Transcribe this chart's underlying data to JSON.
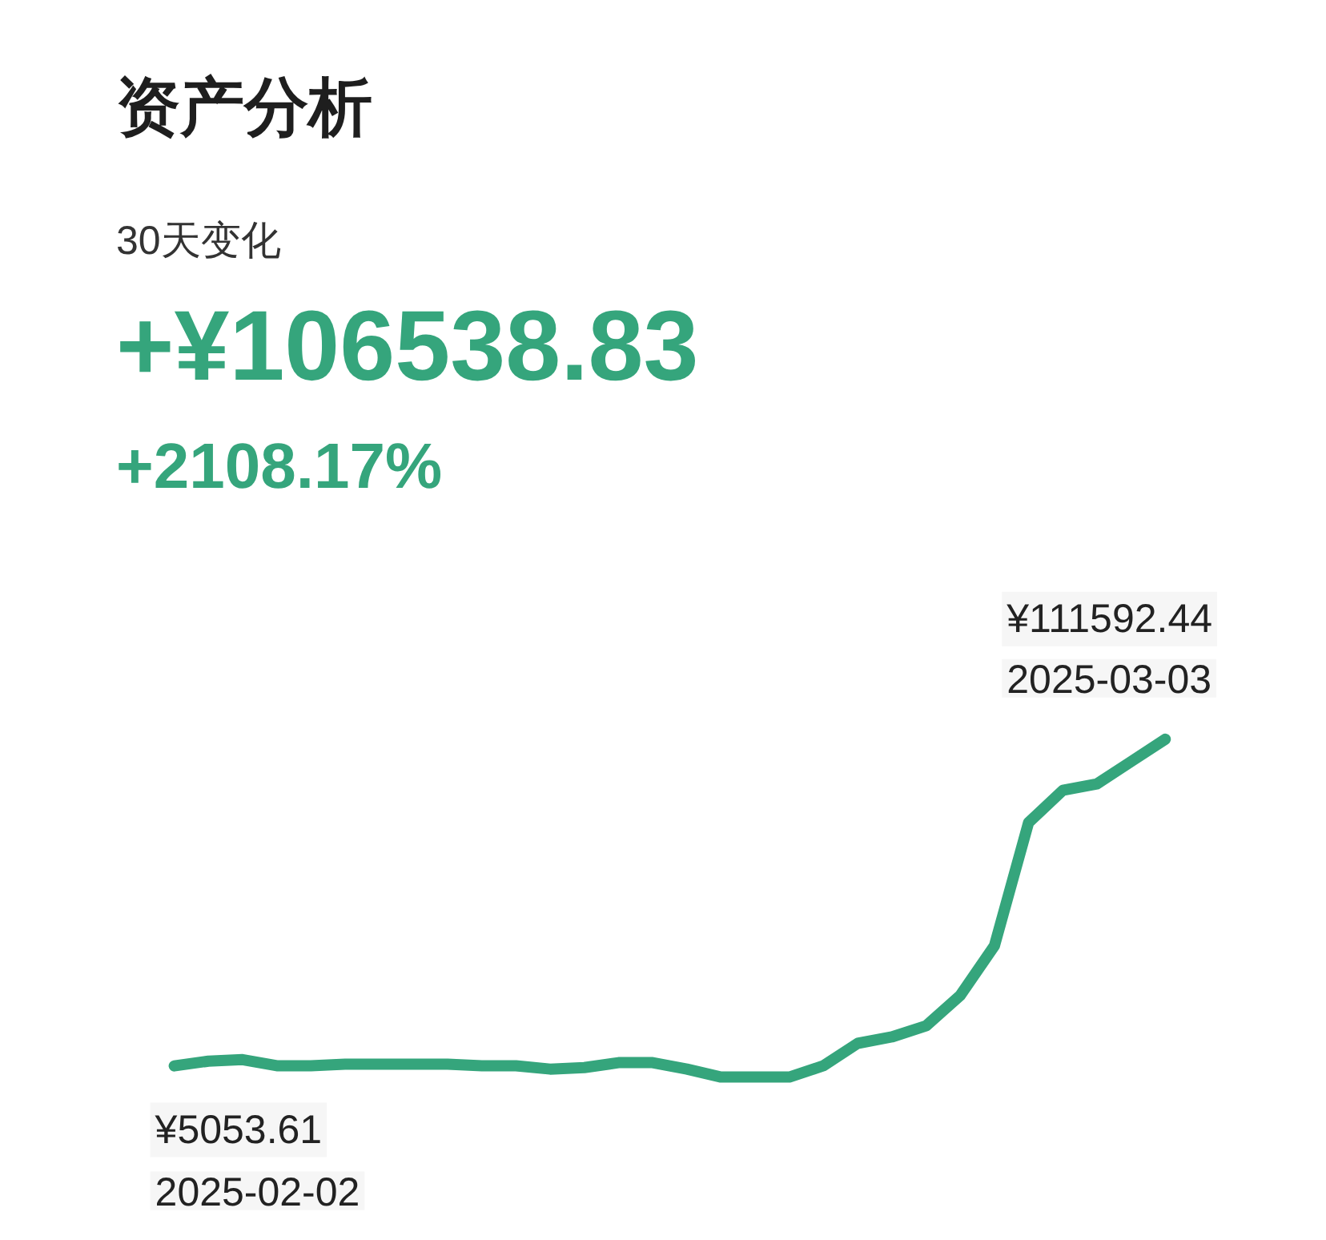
{
  "chart_data": {
    "type": "line",
    "title": "资产分析",
    "subtitle": "30天变化",
    "annotations": [
      "+¥106538.83",
      "+2108.17%"
    ],
    "categories": [
      null,
      null,
      null,
      null,
      null,
      null,
      null,
      null,
      null,
      null,
      null,
      null,
      null,
      null,
      null,
      null,
      null,
      null,
      null,
      null,
      null,
      null,
      null,
      null,
      null,
      null,
      null,
      null,
      null,
      null
    ],
    "series": [
      {
        "color": "#35a57c",
        "values": [
          5053.61,
          6600,
          7100,
          5100,
          5100,
          5600,
          5600,
          5600,
          5600,
          5100,
          5100,
          4000,
          4500,
          6100,
          6100,
          4000,
          1400,
          1400,
          1400,
          5100,
          12400,
          14500,
          18100,
          28000,
          44200,
          84400,
          94900,
          97000,
          104300,
          111592.44
        ],
        "value_labels": [
          "¥5053.61\n2025-02-02",
          null,
          null,
          null,
          null,
          null,
          null,
          null,
          null,
          null,
          null,
          null,
          null,
          null,
          null,
          null,
          null,
          null,
          null,
          null,
          null,
          null,
          null,
          null,
          null,
          null,
          null,
          null,
          null,
          "¥111592.44\n2025-03-03"
        ]
      }
    ],
    "ylim": [
      -52000,
      180000
    ],
    "tick_labels": false,
    "grid": false,
    "line_style": "solid"
  }
}
